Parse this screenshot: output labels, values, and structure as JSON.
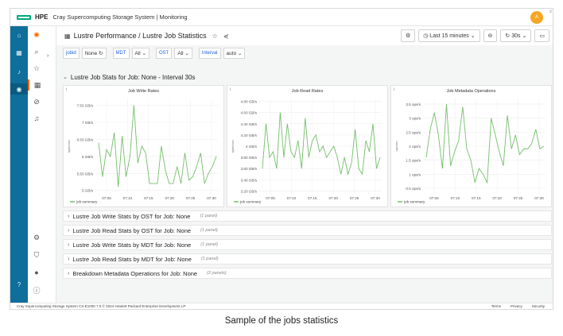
{
  "topbar": {
    "brand": "HPE",
    "title": "Cray Supercomputing Storage System  |  Monitoring",
    "avatar_initial": "A",
    "close": "x"
  },
  "sidebar": {
    "icons": [
      "home-icon",
      "grid-icon",
      "bell-icon",
      "eye-icon",
      "help-icon"
    ]
  },
  "grafana_nav": {
    "icons": [
      "grafana-logo-icon",
      "search-icon",
      "star-icon",
      "dashboards-icon",
      "explore-icon",
      "alerts-icon",
      "settings-icon",
      "shield-icon",
      "user-icon",
      "help-circle-icon"
    ]
  },
  "dashboard": {
    "title": "Lustre Performance  /  Lustre Job Statistics",
    "time_range": "Last 15 minutes",
    "refresh": "30s"
  },
  "variables": [
    {
      "label": "jobid",
      "value": "None"
    },
    {
      "label": "MDT",
      "value": "All"
    },
    {
      "label": "OST",
      "value": "All"
    },
    {
      "label": "Interval",
      "value": "auto"
    }
  ],
  "row_main": "Lustre Job Stats for Job: None - Interval 30s",
  "panels": [
    {
      "title": "Job Write Rates",
      "ylabel": "bytes/sec",
      "yticks": [
        "7.50 GB/s",
        "7 GB/s",
        "6.50 GB/s",
        "6 GB/s",
        "5.50 GB/s",
        "5 GB/s"
      ],
      "ymin": 4.9,
      "ymax": 7.7,
      "xticks": [
        "07:05",
        "07:10",
        "07:15",
        "07:20",
        "07:25",
        "07:30"
      ],
      "legend": "job summary",
      "chart_data": {
        "type": "line",
        "series": [
          {
            "name": "job summary",
            "values": [
              6.4,
              5.4,
              6.2,
              6.0,
              6.7,
              5.1,
              6.6,
              5.4,
              6.0,
              7.5,
              5.8,
              6.3,
              6.1,
              5.2,
              5.2,
              5.2,
              6.3,
              5.6,
              5.2,
              5.2,
              5.7,
              5.2,
              6.1,
              5.3,
              5.4,
              5.7,
              6.1,
              5.2,
              5.5,
              5.7,
              6.0
            ]
          }
        ]
      }
    },
    {
      "title": "Job Read Rates",
      "ylabel": "bytes/sec",
      "yticks": [
        "4.80 GB/s",
        "4.60 GB/s",
        "4.40 GB/s",
        "4.20 GB/s",
        "4 GB/s",
        "3.80 GB/s",
        "3.60 GB/s",
        "3.40 GB/s",
        "3.20 GB/s"
      ],
      "ymin": 3.15,
      "ymax": 4.85,
      "xticks": [
        "07:05",
        "07:10",
        "07:15",
        "07:20",
        "07:25",
        "07:30"
      ],
      "legend": "job summary",
      "chart_data": {
        "type": "line",
        "series": [
          {
            "name": "job summary",
            "values": [
              3.6,
              4.4,
              3.8,
              3.9,
              3.6,
              4.6,
              3.8,
              4.4,
              3.9,
              3.8,
              4.1,
              3.6,
              4.5,
              3.8,
              4.1,
              4.2,
              3.9,
              4.0,
              3.8,
              3.9,
              4.0,
              3.8,
              3.5,
              3.8,
              3.5,
              3.7,
              4.3,
              3.6,
              3.5,
              4.1,
              3.9,
              4.4,
              3.6,
              3.8
            ]
          }
        ]
      }
    },
    {
      "title": "Job Metadata Operations",
      "ylabel": "ops/sec",
      "yticks": [
        "3.5 ops/s",
        "3 ops/s",
        "2.5 ops/s",
        "2 ops/s",
        "1.5 ops/s",
        "1 ops/s",
        "0.5 ops/s"
      ],
      "ymin": 0.3,
      "ymax": 3.7,
      "xticks": [
        "07:05",
        "07:10",
        "07:15",
        "07:20",
        "07:25",
        "07:30"
      ],
      "legend": "job summary",
      "chart_data": {
        "type": "line",
        "series": [
          {
            "name": "job summary",
            "values": [
              1.6,
              2.6,
              3.2,
              2.4,
              1.2,
              3.5,
              1.3,
              1.8,
              2.2,
              3.4,
              1.9,
              1.5,
              0.7,
              1.2,
              1.0,
              0.7,
              3.0,
              2.4,
              1.8,
              1.3,
              3.1,
              1.9,
              2.4,
              1.7,
              1.9,
              1.9,
              2.1,
              2.6,
              1.9,
              2.0
            ]
          }
        ]
      }
    }
  ],
  "collapsed_rows": [
    {
      "title": "Lustre Job Write Stats by OST for Job: None",
      "count": "(1 panel)"
    },
    {
      "title": "Lustre Job Read Stats by OST for Job: None",
      "count": "(1 panel)"
    },
    {
      "title": "Lustre Job Write Stats by MDT for Job: None",
      "count": "(1 panel)"
    },
    {
      "title": "Lustre Job Read Stats by MDT for Job: None",
      "count": "(1 panel)"
    },
    {
      "title": "Breakdown Metadata Operations for Job: None",
      "count": "(2 panels)"
    }
  ],
  "footer": {
    "copyright": "Cray Supercomputing Storage System CS-E1000 7.0 © 2024 Hewlett Packard Enterprise Development LP",
    "links": [
      "Terms",
      "Privacy",
      "Security"
    ]
  },
  "caption": "Sample of the jobs statistics",
  "colors": {
    "accent": "#01a982",
    "sidebar": "#0f6e9a",
    "series": "#73bf69",
    "grafana": "#f46800"
  }
}
